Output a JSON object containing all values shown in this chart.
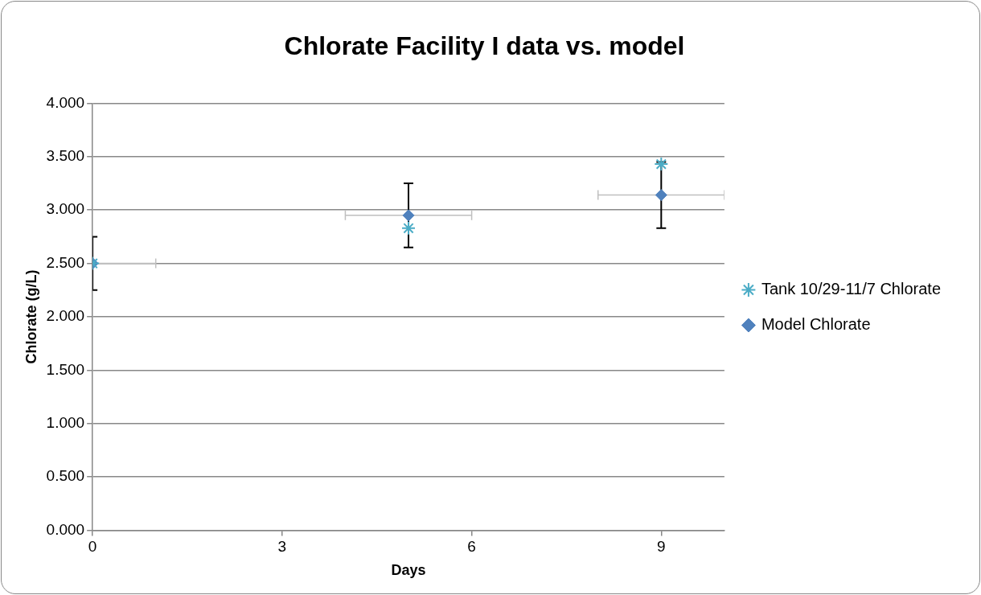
{
  "chart_data": {
    "type": "scatter",
    "title": "Chlorate Facility I data vs. model",
    "xlabel": "Days",
    "ylabel": "Chlorate (g/L)",
    "xlim": [
      0,
      10
    ],
    "xticks": [
      0,
      3,
      6,
      9
    ],
    "ylim": [
      0,
      4
    ],
    "yticks": [
      {
        "value": 0,
        "label": "0.000"
      },
      {
        "value": 0.5,
        "label": "0.500"
      },
      {
        "value": 1,
        "label": "1.000"
      },
      {
        "value": 1.5,
        "label": "1.500"
      },
      {
        "value": 2,
        "label": "2.000"
      },
      {
        "value": 2.5,
        "label": "2.500"
      },
      {
        "value": 3,
        "label": "3.000"
      },
      {
        "value": 3.5,
        "label": "3.500"
      },
      {
        "value": 4,
        "label": "4.000"
      }
    ],
    "grid": "y",
    "legend": "right",
    "series": [
      {
        "name": "Tank 10/29-11/7 Chlorate",
        "color": "#4bacc6",
        "marker": "cross",
        "x": [
          0,
          5,
          9
        ],
        "values": [
          2.5,
          2.83,
          3.43
        ]
      },
      {
        "name": "Model Chlorate",
        "color": "#4f81bd",
        "marker": "diamond",
        "x": [
          0,
          5,
          9
        ],
        "values": [
          2.5,
          2.95,
          3.14
        ],
        "errors": [
          0.25,
          0.3,
          0.31
        ],
        "xerrors": [
          [
            0,
            1
          ],
          1,
          1
        ]
      }
    ]
  }
}
